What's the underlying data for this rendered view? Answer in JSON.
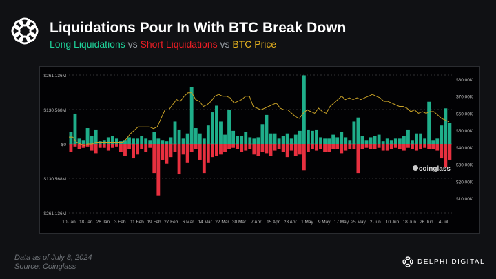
{
  "header": {
    "title": "Liquidations Pour In With BTC Break Down",
    "sub_long": "Long Liquidations",
    "sub_vs1": " vs ",
    "sub_short": "Short Liquidations",
    "sub_vs2": " vs ",
    "sub_price": "BTC Price"
  },
  "footer": {
    "data_as_of": "Data as of July 8, 2024",
    "source": "Source:  Coinglass",
    "brand": "DELPHI DIGITAL"
  },
  "watermark": "coinglass",
  "colors": {
    "long": "#1fae8a",
    "short": "#e8303f",
    "price": "#c9a227"
  },
  "chart_data": {
    "type": "bar",
    "title": "Liquidations Pour In With BTC Break Down",
    "x_tick_labels": [
      "10 Jan",
      "18 Jan",
      "26 Jan",
      "3 Feb",
      "11 Feb",
      "19 Feb",
      "27 Feb",
      "6 Mar",
      "14 Mar",
      "22 Mar",
      "30 Mar",
      "7 Apr",
      "15 Apr",
      "23 Apr",
      "1 May",
      "9 May",
      "17 May",
      "25 May",
      "2 Jun",
      "10 Jun",
      "18 Jun",
      "26 Jun",
      "4 Jul"
    ],
    "x_range_days": [
      0,
      180
    ],
    "y_left": {
      "ticks": [
        "$261.136M",
        "$130.568M",
        "$0",
        "$130.568M",
        "$261.136M"
      ],
      "tick_values": [
        261.136,
        130.568,
        0,
        -130.568,
        -261.136
      ],
      "range": [
        -261.136,
        261.136
      ],
      "unit": "$M"
    },
    "y_right": {
      "ticks": [
        "$80.00K",
        "$70.00K",
        "$60.00K",
        "$50.00K",
        "$40.00K",
        "$30.00K",
        "$20.00K",
        "$10.00K"
      ],
      "tick_values": [
        80,
        70,
        60,
        50,
        40,
        30,
        20,
        10
      ],
      "range": [
        0,
        84
      ],
      "unit": "$K"
    },
    "series": [
      {
        "name": "Long Liquidations",
        "type": "bar",
        "values": [
          45,
          115,
          20,
          15,
          60,
          30,
          55,
          10,
          15,
          25,
          30,
          20,
          10,
          15,
          25,
          20,
          20,
          30,
          20,
          15,
          45,
          20,
          15,
          10,
          25,
          85,
          55,
          20,
          40,
          215,
          60,
          40,
          20,
          70,
          120,
          145,
          85,
          35,
          130,
          50,
          30,
          30,
          45,
          25,
          20,
          25,
          75,
          110,
          40,
          40,
          20,
          30,
          40,
          20,
          35,
          50,
          260,
          55,
          50,
          55,
          25,
          20,
          20,
          35,
          25,
          45,
          25,
          15,
          85,
          100,
          30,
          15,
          25,
          30,
          35,
          10,
          20,
          15,
          20,
          20,
          30,
          55,
          15,
          40,
          40,
          20,
          160,
          15,
          20,
          70,
          135,
          80
        ]
      },
      {
        "name": "Short Liquidations",
        "type": "bar",
        "values": [
          30,
          10,
          20,
          15,
          10,
          25,
          35,
          15,
          15,
          25,
          15,
          10,
          30,
          45,
          20,
          55,
          40,
          20,
          30,
          15,
          110,
          195,
          60,
          75,
          50,
          30,
          115,
          40,
          70,
          30,
          20,
          60,
          110,
          70,
          50,
          45,
          40,
          30,
          20,
          15,
          20,
          30,
          25,
          20,
          40,
          45,
          30,
          35,
          45,
          25,
          20,
          30,
          50,
          25,
          45,
          40,
          100,
          30,
          20,
          25,
          20,
          30,
          30,
          20,
          20,
          35,
          25,
          20,
          20,
          110,
          20,
          15,
          20,
          20,
          15,
          25,
          25,
          20,
          15,
          20,
          25,
          15,
          20,
          25,
          20,
          15,
          20,
          20,
          25,
          55,
          90,
          60
        ]
      },
      {
        "name": "BTC Price",
        "type": "line",
        "values": [
          46,
          46,
          43,
          42,
          41,
          42,
          42,
          43,
          43,
          43,
          43,
          43,
          43,
          43,
          43,
          45,
          48,
          50,
          52,
          52,
          52,
          52,
          51,
          52,
          57,
          62,
          62,
          65,
          68,
          67,
          70,
          72,
          72,
          68,
          67,
          64,
          65,
          67,
          70,
          71,
          70,
          70,
          69,
          66,
          67,
          68,
          70,
          70,
          64,
          63,
          62,
          63,
          64,
          65,
          66,
          63,
          62,
          62,
          60,
          58,
          57,
          60,
          62,
          61,
          60,
          63,
          61,
          60,
          64,
          66,
          68,
          70,
          68,
          69,
          68,
          69,
          68,
          69,
          70,
          71,
          70,
          69,
          67,
          67,
          66,
          65,
          64,
          64,
          63,
          61,
          62,
          60,
          61,
          60,
          61,
          61,
          59,
          57,
          56,
          55
        ]
      }
    ]
  }
}
